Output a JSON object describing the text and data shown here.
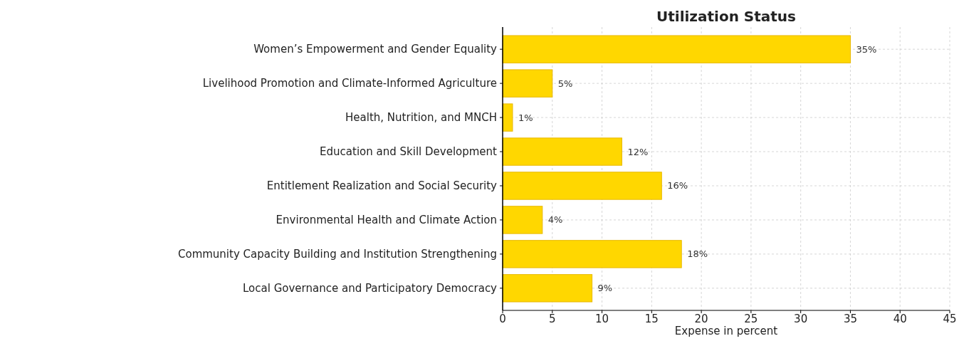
{
  "chart_data": {
    "type": "bar",
    "orientation": "horizontal",
    "title": "Utilization Status",
    "xlabel": "Expense in percent",
    "categories": [
      "Women’s Empowerment and Gender Equality",
      "Livelihood Promotion and Climate-Informed Agriculture",
      "Health, Nutrition, and MNCH",
      "Education and Skill Development",
      "Entitlement Realization and Social Security",
      "Environmental Health and Climate Action",
      "Community Capacity Building and Institution Strengthening",
      "Local Governance and Participatory Democracy"
    ],
    "values": [
      35,
      5,
      1,
      12,
      16,
      4,
      18,
      9
    ],
    "value_labels": [
      "35%",
      "5%",
      "1%",
      "12%",
      "16%",
      "4%",
      "18%",
      "9%"
    ],
    "color": "#ffd700",
    "xlim": [
      0,
      45
    ],
    "xticks": [
      0,
      5,
      10,
      15,
      20,
      25,
      30,
      35,
      40,
      45
    ],
    "grid": true
  }
}
